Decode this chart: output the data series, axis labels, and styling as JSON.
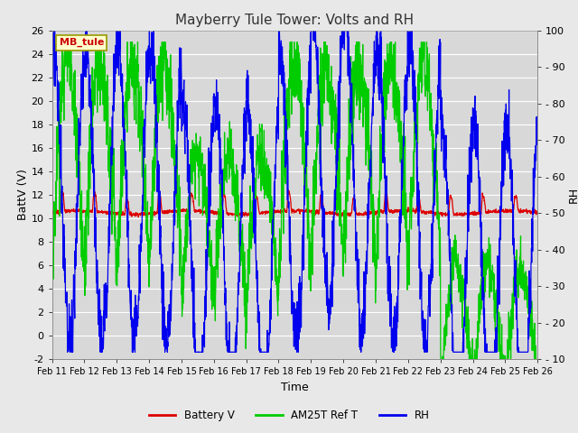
{
  "title": "Mayberry Tule Tower: Volts and RH",
  "xlabel": "Time",
  "ylabel_left": "BattV (V)",
  "ylabel_right": "RH",
  "annotation": "MB_tule",
  "left_ylim": [
    -2,
    26
  ],
  "right_ylim": [
    10,
    100
  ],
  "left_yticks": [
    -2,
    0,
    2,
    4,
    6,
    8,
    10,
    12,
    14,
    16,
    18,
    20,
    22,
    24,
    26
  ],
  "right_yticks": [
    10,
    20,
    30,
    40,
    50,
    60,
    70,
    80,
    90,
    100
  ],
  "xtick_labels": [
    "Feb 11",
    "Feb 12",
    "Feb 13",
    "Feb 14",
    "Feb 15",
    "Feb 16",
    "Feb 17",
    "Feb 18",
    "Feb 19",
    "Feb 20",
    "Feb 21",
    "Feb 22",
    "Feb 23",
    "Feb 24",
    "Feb 25",
    "Feb 26"
  ],
  "battery_color": "#dd0000",
  "am25t_color": "#00cc00",
  "rh_color": "#0000ee",
  "plot_bg_color": "#d8d8d8",
  "fig_bg_color": "#e8e8e8",
  "grid_color": "#ffffff",
  "legend_labels": [
    "Battery V",
    "AM25T Ref T",
    "RH"
  ],
  "title_fontsize": 11,
  "axis_label_fontsize": 9,
  "tick_fontsize": 8
}
